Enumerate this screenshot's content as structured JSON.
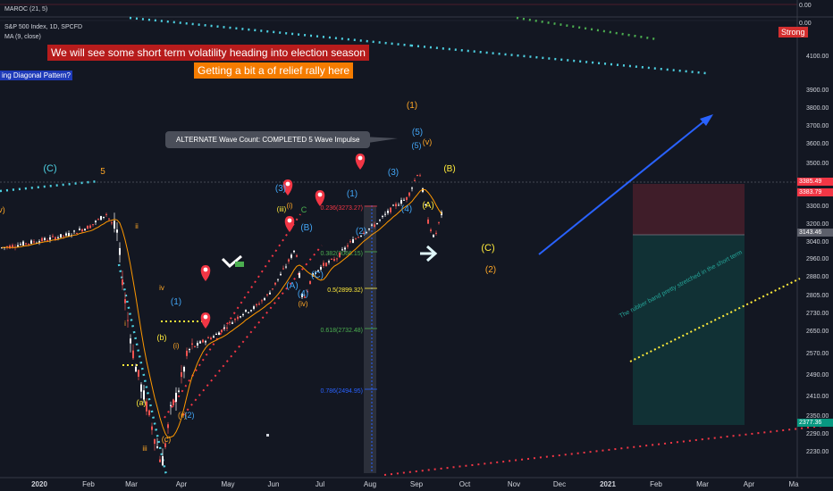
{
  "legend": {
    "oscillator": "MAROC (21, 5)",
    "symbol": "S&P 500 Index, 1D, SPCFD",
    "ma": "MA (9, close)"
  },
  "banners": {
    "volatility": "We will see some short term volatility heading into election season",
    "relief": "Getting a bit a of relief rally here",
    "diagonal": "ing Diagonal Pattern?",
    "strong": "Strong",
    "alternate": "ALTERNATE Wave Count: COMPLETED 5 Wave Impulse",
    "rotated": "The rubber band pretty stretched in the short term"
  },
  "axis": {
    "osc_label": "0.00",
    "osc_zero": "0.00",
    "price_ticks": [
      "4100.00",
      "3900.00",
      "3800.00",
      "3700.00",
      "3600.00",
      "3500.00",
      "3300.00",
      "3200.00",
      "3040.00",
      "2960.00",
      "2880.00",
      "2805.00",
      "2730.00",
      "2650.00",
      "2570.00",
      "2490.00",
      "2410.00",
      "2350.00",
      "2290.00",
      "2230.00"
    ],
    "price_box_1": "3385.49",
    "price_box_2": "3383.79",
    "price_box_3": "3143.46",
    "price_box_4": "2377.36",
    "time_ticks": [
      "2020",
      "Feb",
      "Mar",
      "Apr",
      "May",
      "Jun",
      "Jul",
      "Aug",
      "Sep",
      "Oct",
      "Nov",
      "Dec",
      "2021",
      "Feb",
      "Mar",
      "Apr",
      "Ma"
    ]
  },
  "fib": [
    "0.236(3273.27)",
    "0.382(3066.15)",
    "0.5(2899.32)",
    "0.618(2732.48)",
    "0.786(2494.95)"
  ],
  "wave_labels": {
    "c_left": "(C)",
    "five_left": "5",
    "v_left": "v)",
    "ii": "ii",
    "i": "i",
    "iv": "iv",
    "one_paren": "(1)",
    "b_small": "(b)",
    "a_small": "(a)",
    "iii": "iii",
    "c_small": "(c)",
    "i_paren": "(i)",
    "ii_paren": "(ii)",
    "two_paren_blue": "(2)",
    "three_paren": "(3)",
    "iii_paren": "(iii)",
    "i_paren2": "(i)",
    "C_green": "C",
    "B_blue": "(B)",
    "A_blue": "(A)",
    "four_paren": "(4)",
    "C_blue": "(C)",
    "iv_paren": "(iv)",
    "one_paren2": "(1)",
    "two_paren2": "(2)",
    "three_paren2": "(3)",
    "four_paren2": "(4)",
    "five_paren": "(5)",
    "v_paren": "(v)",
    "five_paren2": "(5)",
    "A_paren": "(A)",
    "B_paren": "(B)",
    "one_orange": "(1)",
    "C_yellow": "(C)",
    "two_orange": "(2)"
  },
  "colors": {
    "background": "#131722",
    "candle_up": "#ffffff",
    "candle_down": "#ef5350",
    "ma": "#ff9800",
    "cyan": "#4dd0e1",
    "red": "#f23645",
    "green": "#4caf50",
    "blue": "#2962ff",
    "yellow": "#ffeb3b",
    "label_blue": "#42a5f5",
    "label_orange": "#ffa726"
  },
  "chart_data": {
    "type": "line",
    "title": "S&P 500 Index, 1D, SPCFD",
    "xlabel": "",
    "ylabel": "",
    "ylim": [
      2200,
      4160
    ],
    "x": [
      "2020-01",
      "2020-02",
      "2020-03-23",
      "2020-04",
      "2020-05",
      "2020-06-08",
      "2020-06-11",
      "2020-07",
      "2020-08",
      "2020-09-02",
      "2020-09-21",
      "2020-09-28"
    ],
    "series": [
      {
        "name": "S&P 500 Index, 1D, SPCFD",
        "values": [
          3230,
          3386,
          2237,
          2770,
          2950,
          3230,
          3000,
          3150,
          3300,
          3588,
          3270,
          3385
        ]
      }
    ],
    "last_price": 3385.49,
    "position": {
      "entry": 3143.46,
      "target": 3385.49,
      "stop": 2377.36
    }
  }
}
